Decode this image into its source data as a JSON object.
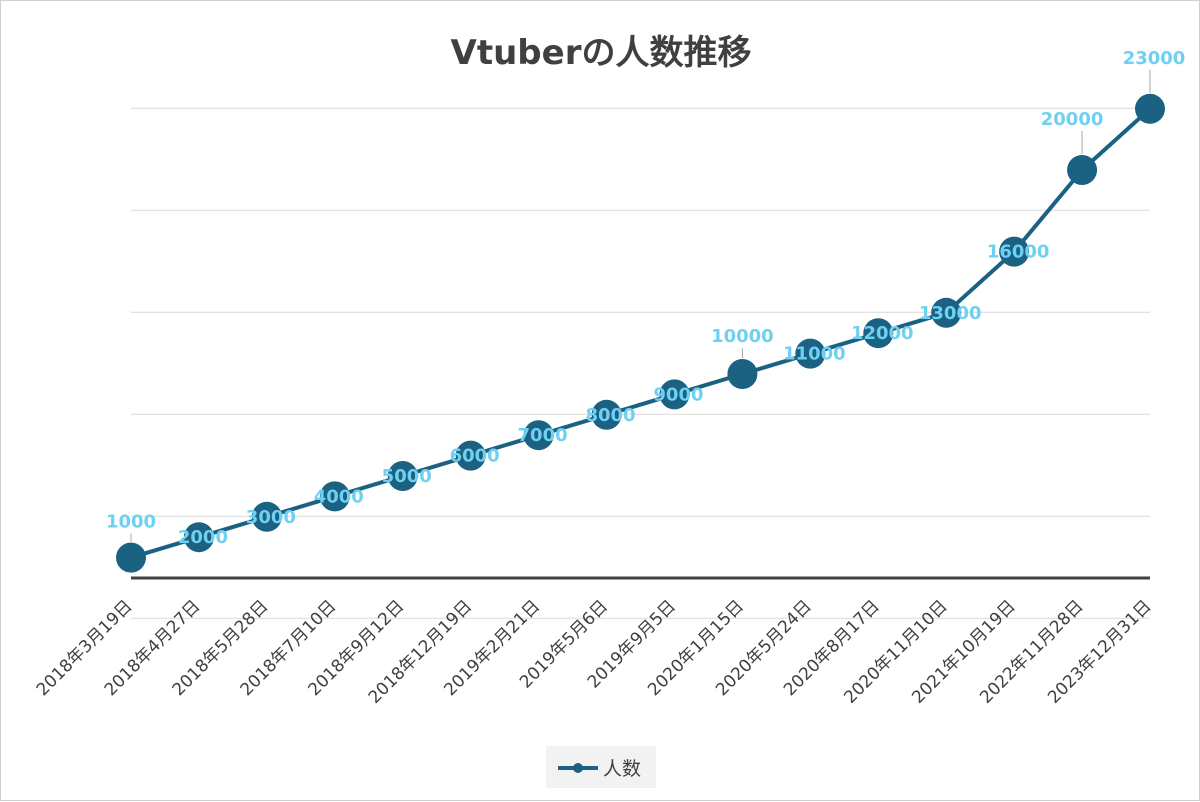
{
  "chart_data": {
    "type": "line",
    "title": "Vtuberの人数推移",
    "categories": [
      "2018年3月19日",
      "2018年4月27日",
      "2018年5月28日",
      "2018年7月10日",
      "2018年9月12日",
      "2018年12月19日",
      "2019年2月21日",
      "2019年5月6日",
      "2019年9月5日",
      "2020年1月15日",
      "2020年5月24日",
      "2020年8月17日",
      "2020年11月10日",
      "2021年10月19日",
      "2022年11月28日",
      "2023年12月31日"
    ],
    "series": [
      {
        "name": "人数",
        "values": [
          1000,
          2000,
          3000,
          4000,
          5000,
          6000,
          7000,
          8000,
          9000,
          10000,
          11000,
          12000,
          13000,
          16000,
          20000,
          23000
        ],
        "color": "#1a6182",
        "label_color": "#6fd0f2"
      }
    ],
    "xlabel": "",
    "ylabel": "",
    "grid": true,
    "y_tick_labels_shown": false,
    "legend": "bottom"
  }
}
